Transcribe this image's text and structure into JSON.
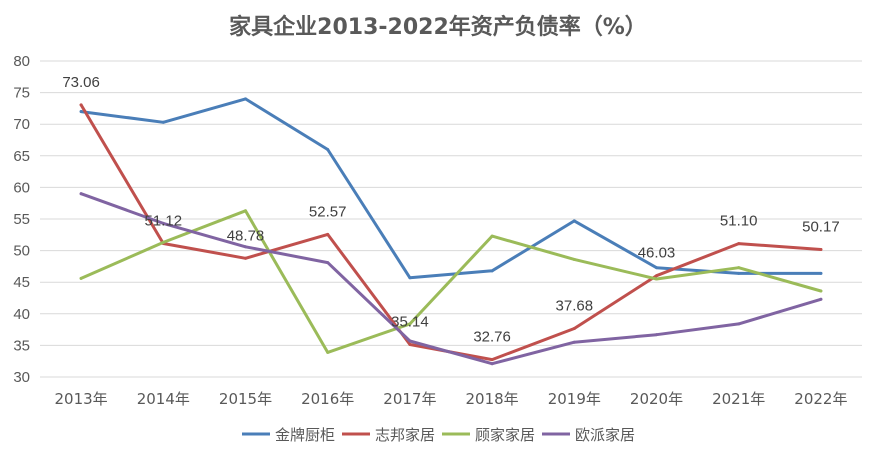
{
  "chart_data": {
    "type": "line",
    "title": "家具企业2013-2022年资产负债率（%）",
    "xlabel": "",
    "ylabel": "",
    "ylim": [
      30,
      80
    ],
    "yticks": [
      30,
      35,
      40,
      45,
      50,
      55,
      60,
      65,
      70,
      75,
      80
    ],
    "grid": true,
    "legend_position": "bottom",
    "categories": [
      "2013年",
      "2014年",
      "2015年",
      "2016年",
      "2017年",
      "2018年",
      "2019年",
      "2020年",
      "2021年",
      "2022年"
    ],
    "series": [
      {
        "name": "金牌厨柜",
        "color": "#4a7eb8",
        "values": [
          72.0,
          70.3,
          74.0,
          66.0,
          45.7,
          46.8,
          54.7,
          47.3,
          46.4,
          46.4
        ]
      },
      {
        "name": "志邦家居",
        "color": "#c0504d",
        "values": [
          73.06,
          51.12,
          48.78,
          52.57,
          35.14,
          32.76,
          37.68,
          46.03,
          51.1,
          50.17
        ]
      },
      {
        "name": "顾家家居",
        "color": "#9bbb59",
        "values": [
          45.6,
          51.3,
          56.3,
          33.9,
          38.4,
          52.3,
          48.6,
          45.5,
          47.3,
          43.6
        ]
      },
      {
        "name": "欧派家居",
        "color": "#8064a2",
        "values": [
          59.0,
          54.3,
          50.6,
          48.1,
          35.7,
          32.1,
          35.5,
          36.7,
          38.4,
          42.3
        ]
      }
    ],
    "data_labels": [
      {
        "series": "志邦家居",
        "index": 0,
        "text": "73.06"
      },
      {
        "series": "志邦家居",
        "index": 1,
        "text": "51.12"
      },
      {
        "series": "志邦家居",
        "index": 2,
        "text": "48.78"
      },
      {
        "series": "志邦家居",
        "index": 3,
        "text": "52.57"
      },
      {
        "series": "志邦家居",
        "index": 4,
        "text": "35.14"
      },
      {
        "series": "志邦家居",
        "index": 5,
        "text": "32.76"
      },
      {
        "series": "志邦家居",
        "index": 6,
        "text": "37.68"
      },
      {
        "series": "志邦家居",
        "index": 7,
        "text": "46.03"
      },
      {
        "series": "志邦家居",
        "index": 8,
        "text": "51.10"
      },
      {
        "series": "志邦家居",
        "index": 9,
        "text": "50.17"
      }
    ]
  }
}
